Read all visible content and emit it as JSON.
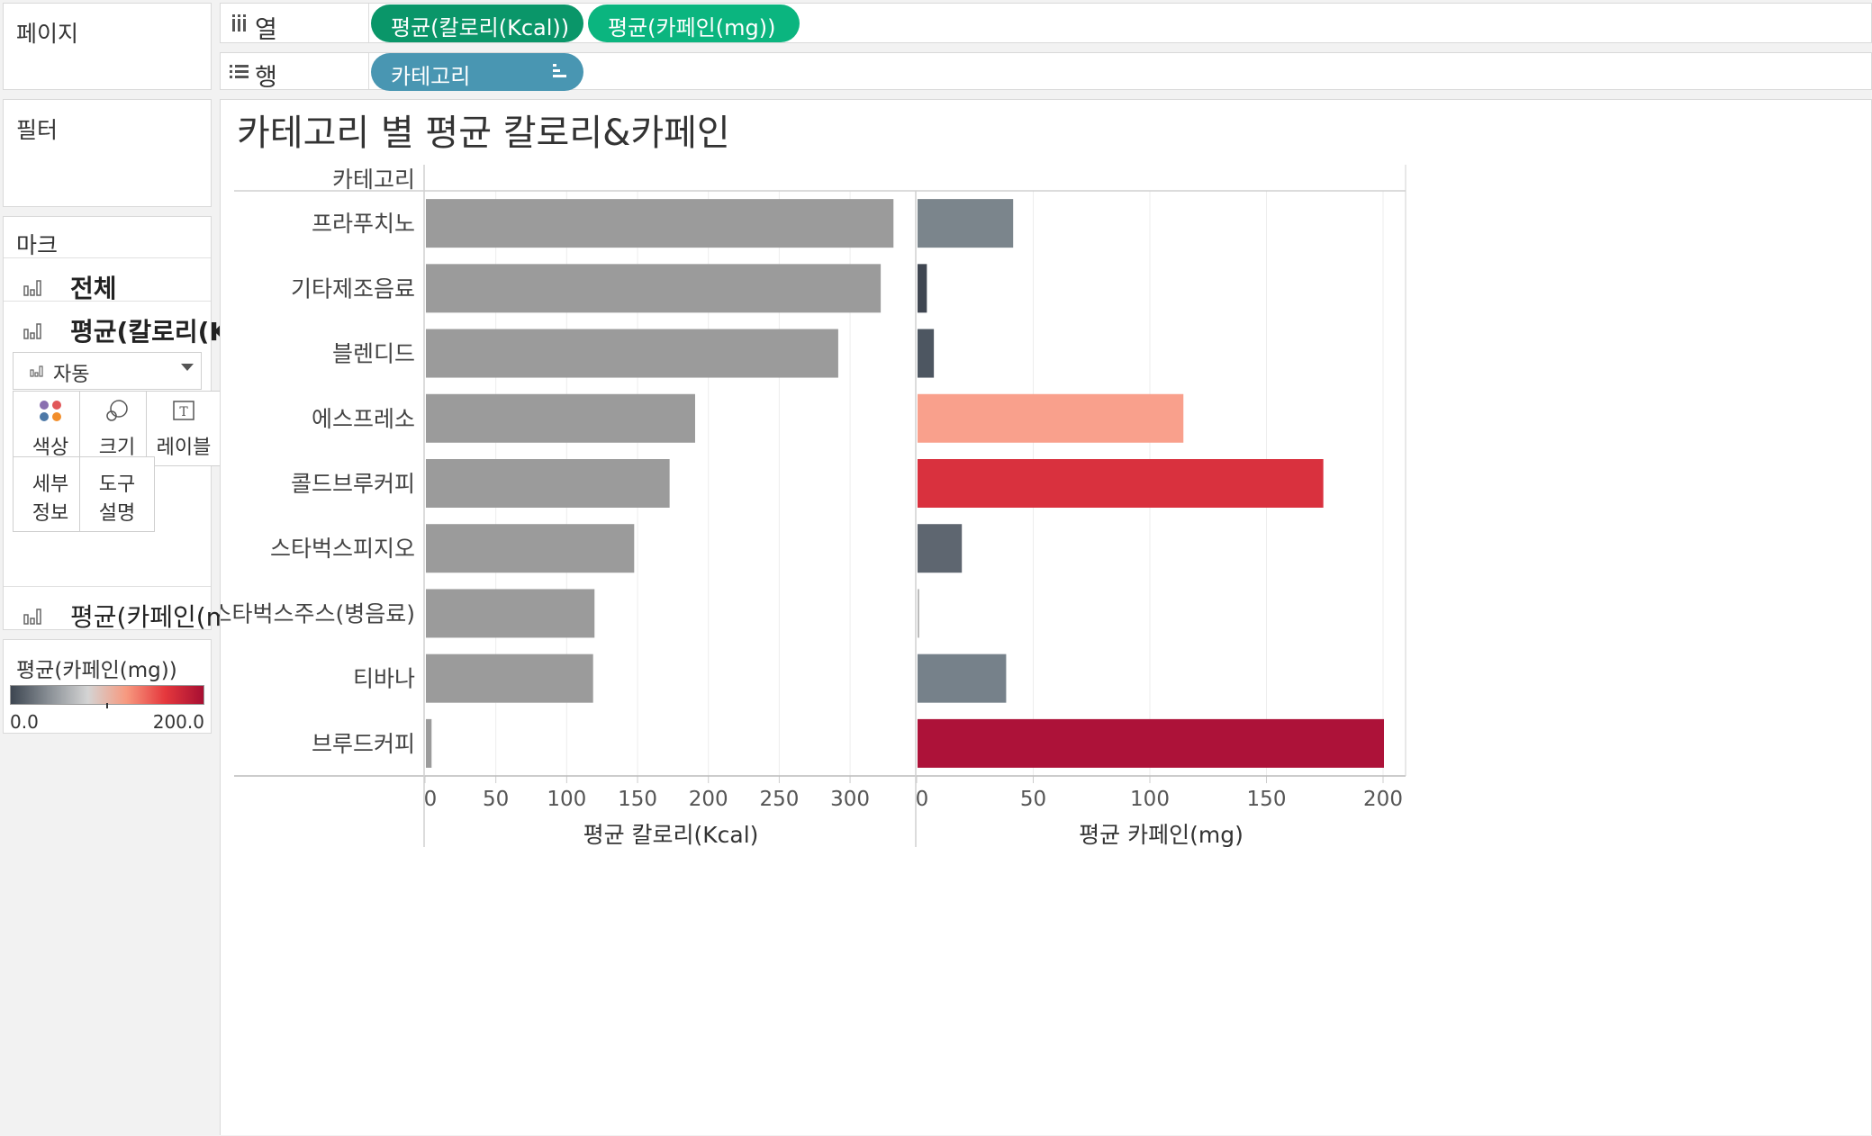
{
  "left_panel": {
    "pages_label": "페이지",
    "filters_label": "필터",
    "marks_label": "마크",
    "marks_all": "전체",
    "marks_calorie": "평균(칼로리(Kc...",
    "marks_type": "자동",
    "cards": {
      "color": "색상",
      "size": "크기",
      "label": "레이블",
      "detail_1": "세부",
      "detail_2": "정보",
      "tooltip_1": "도구",
      "tooltip_2": "설명"
    },
    "marks_caffeine": "평균(카페인(mg))",
    "legend": {
      "title": "평균(카페인(mg))",
      "min": "0.0",
      "max": "200.0",
      "colors": [
        "#3d4651",
        "#8a9096",
        "#d4d4d4",
        "#f7997f",
        "#e5383d",
        "#a70f32"
      ]
    }
  },
  "shelves": {
    "columns_label": "열",
    "columns_pills": [
      "평균(칼로리(Kcal))",
      "평균(카페인(mg))"
    ],
    "rows_label": "행",
    "rows_pill": "카테고리"
  },
  "chart_data": {
    "type": "bar",
    "orientation": "horizontal",
    "title": "카테고리 별 평균 칼로리&카페인",
    "category_header": "카테고리",
    "categories": [
      "프라푸치노",
      "기타제조음료",
      "블렌디드",
      "에스프레소",
      "콜드브루커피",
      "스타벅스피지오",
      "스타벅스주스(병음료)",
      "티바나",
      "브루드커피"
    ],
    "series": [
      {
        "name": "평균 칼로리(Kcal)",
        "values": [
          330,
          321,
          291,
          190,
          172,
          147,
          119,
          118,
          4
        ],
        "xlim": [
          0,
          346
        ],
        "ticks": [
          0,
          50,
          100,
          150,
          200,
          250,
          300
        ],
        "bar_color": "#9b9b9b"
      },
      {
        "name": "평균 카페인(mg)",
        "values": [
          41,
          4,
          7,
          114,
          174,
          19,
          0.5,
          38,
          200
        ],
        "xlim": [
          0,
          210
        ],
        "ticks": [
          0,
          50,
          100,
          150,
          200
        ],
        "colors": [
          "#7b858c",
          "#3f4651",
          "#4d5661",
          "#f9a08c",
          "#d9313e",
          "#5e6670",
          "#bbbbbb",
          "#76818a",
          "#ad1239"
        ]
      }
    ],
    "grid": true,
    "legend": "left-panel"
  }
}
